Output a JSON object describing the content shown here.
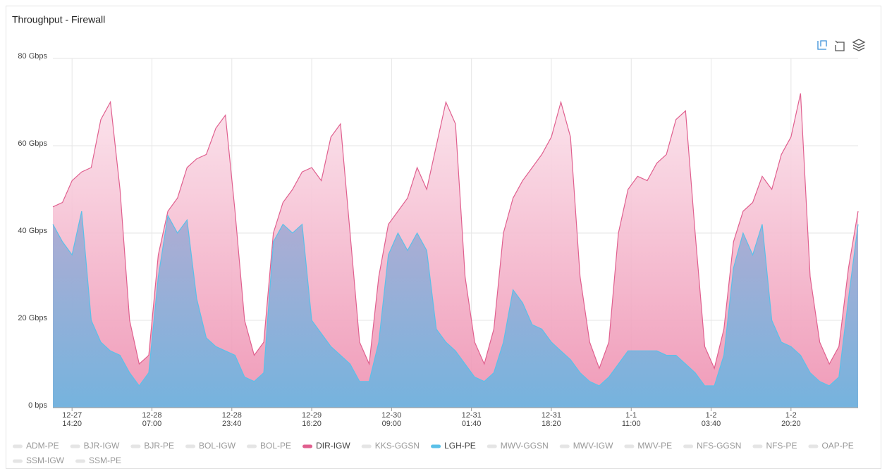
{
  "chart_data": {
    "type": "area",
    "title": "Throughput - Firewall",
    "xlim": [
      "12-27 10:20",
      "1-3 10:20"
    ],
    "xticks": [
      "12-27 14:20",
      "12-28 07:00",
      "12-28 23:40",
      "12-29 16:20",
      "12-30 09:00",
      "12-31 01:40",
      "12-31 18:20",
      "1-1 11:00",
      "1-2 03:40",
      "1-2 20:20"
    ],
    "ylim": [
      0,
      80
    ],
    "yticks": [
      {
        "value": 0,
        "label": "0 bps"
      },
      {
        "value": 20,
        "label": "20 Gbps"
      },
      {
        "value": 40,
        "label": "40 Gbps"
      },
      {
        "value": 60,
        "label": "60 Gbps"
      },
      {
        "value": 80,
        "label": "80 Gbps"
      }
    ],
    "grid": true,
    "x_start": "12-27 10:20",
    "x_step_minutes": 120,
    "series": [
      {
        "name": "ADM-PE",
        "color": "#e5e5e5",
        "visible": false
      },
      {
        "name": "BJR-IGW",
        "color": "#e5e5e5",
        "visible": false
      },
      {
        "name": "BJR-PE",
        "color": "#e5e5e5",
        "visible": false
      },
      {
        "name": "BOL-IGW",
        "color": "#e5e5e5",
        "visible": false
      },
      {
        "name": "BOL-PE",
        "color": "#e5e5e5",
        "visible": false
      },
      {
        "name": "DIR-IGW",
        "color": "#e0608f",
        "visible": true,
        "values": [
          46,
          47,
          52,
          54,
          55,
          66,
          70,
          50,
          20,
          10,
          12,
          35,
          45,
          48,
          55,
          57,
          58,
          64,
          67,
          45,
          20,
          12,
          15,
          40,
          47,
          50,
          54,
          55,
          52,
          62,
          65,
          40,
          15,
          10,
          30,
          42,
          45,
          48,
          55,
          50,
          60,
          70,
          65,
          30,
          15,
          10,
          18,
          40,
          48,
          52,
          55,
          58,
          62,
          70,
          62,
          30,
          15,
          9,
          15,
          40,
          50,
          53,
          52,
          56,
          58,
          66,
          68,
          40,
          14,
          9,
          18,
          38,
          45,
          47,
          53,
          50,
          58,
          62,
          72,
          30,
          15,
          10,
          14,
          32,
          45
        ]
      },
      {
        "name": "KKS-GGSN",
        "color": "#e5e5e5",
        "visible": false
      },
      {
        "name": "LGH-PE",
        "color": "#5bc0e8",
        "visible": true,
        "values": [
          42,
          38,
          35,
          45,
          20,
          15,
          13,
          12,
          8,
          5,
          8,
          30,
          44,
          40,
          43,
          25,
          16,
          14,
          13,
          12,
          7,
          6,
          8,
          38,
          42,
          40,
          42,
          20,
          17,
          14,
          12,
          10,
          6,
          6,
          15,
          35,
          40,
          36,
          40,
          36,
          18,
          15,
          13,
          10,
          7,
          6,
          8,
          15,
          27,
          24,
          19,
          18,
          15,
          13,
          11,
          8,
          6,
          5,
          7,
          10,
          13,
          13,
          13,
          13,
          12,
          12,
          10,
          8,
          5,
          5,
          12,
          32,
          40,
          35,
          42,
          20,
          15,
          14,
          12,
          8,
          6,
          5,
          7,
          25,
          42
        ]
      },
      {
        "name": "MWV-GGSN",
        "color": "#e5e5e5",
        "visible": false
      },
      {
        "name": "MWV-IGW",
        "color": "#e5e5e5",
        "visible": false
      },
      {
        "name": "MWV-PE",
        "color": "#e5e5e5",
        "visible": false
      },
      {
        "name": "NFS-GGSN",
        "color": "#e5e5e5",
        "visible": false
      },
      {
        "name": "NFS-PE",
        "color": "#e5e5e5",
        "visible": false
      },
      {
        "name": "OAP-PE",
        "color": "#e5e5e5",
        "visible": false
      },
      {
        "name": "SSM-IGW",
        "color": "#e5e5e5",
        "visible": false
      },
      {
        "name": "SSM-PE",
        "color": "#e5e5e5",
        "visible": false
      }
    ]
  }
}
